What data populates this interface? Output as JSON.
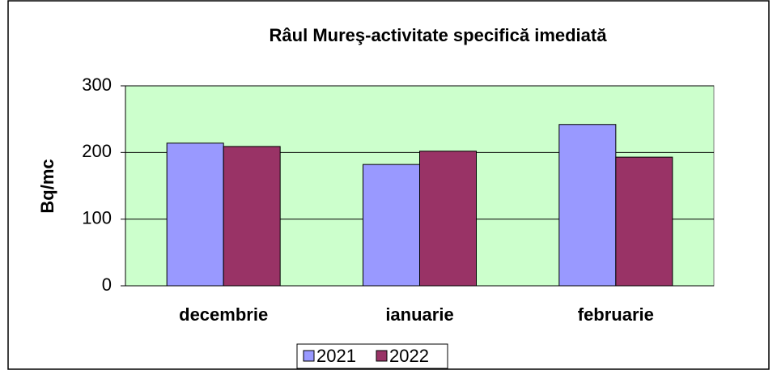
{
  "chart_data": {
    "type": "bar",
    "title": "Râul Mureş-activitate specifică imediată",
    "ylabel": "Bq/mc",
    "categories": [
      "decembrie",
      "ianuarie",
      "februarie"
    ],
    "series": [
      {
        "name": "2021",
        "color": "#9999ff",
        "values": [
          214,
          182,
          242
        ]
      },
      {
        "name": "2022",
        "color": "#993366",
        "values": [
          209,
          202,
          193
        ]
      }
    ],
    "ylim": [
      0,
      300
    ],
    "yticks": [
      0,
      100,
      200,
      300
    ],
    "grid": true,
    "legend": "bottom"
  }
}
